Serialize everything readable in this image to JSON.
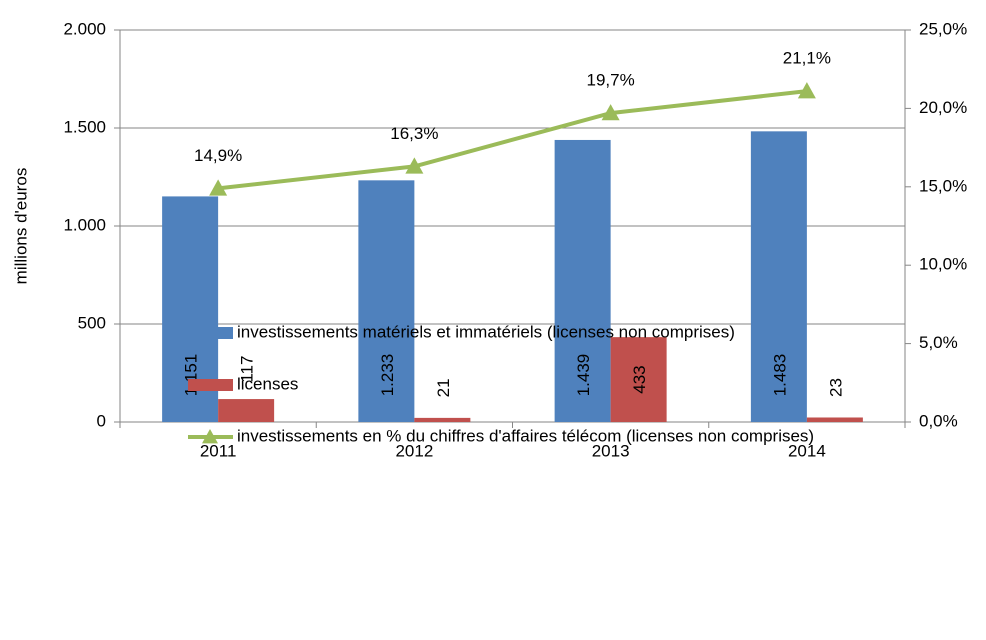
{
  "chart_data": {
    "type": "bar",
    "categories": [
      "2011",
      "2012",
      "2013",
      "2014"
    ],
    "ylabel": "millions d'euros",
    "ylim": [
      0,
      2000
    ],
    "yticks": [
      0,
      500,
      {
        "value": 1000,
        "label": "1.000"
      },
      {
        "value": 1500,
        "label": "1.500"
      },
      {
        "value": 2000,
        "label": "2.000"
      }
    ],
    "y2lim": [
      0,
      25
    ],
    "y2ticks": [
      {
        "value": 0,
        "label": "0,0%"
      },
      {
        "value": 5,
        "label": "5,0%"
      },
      {
        "value": 10,
        "label": "10,0%"
      },
      {
        "value": 15,
        "label": "15,0%"
      },
      {
        "value": 20,
        "label": "20,0%"
      },
      {
        "value": 25,
        "label": "25,0%"
      }
    ],
    "grid": true,
    "legend": "bottom",
    "series": [
      {
        "name": "investissements matériels et immatériels (licenses non comprises)",
        "type": "bar",
        "color": "#4f81bd",
        "values": [
          1151,
          1233,
          1439,
          1483
        ],
        "value_labels": [
          "1.151",
          "1.233",
          "1.439",
          "1.483"
        ]
      },
      {
        "name": "licenses",
        "type": "bar",
        "color": "#c0504d",
        "values": [
          117,
          21,
          433,
          23
        ]
      },
      {
        "name": "investissements en % du chiffres d'affaires télécom (licenses non comprises)",
        "type": "line",
        "axis": "y2",
        "color": "#9bbb59",
        "values": [
          14.9,
          16.3,
          19.7,
          21.1
        ],
        "value_labels": [
          "14,9%",
          "16,3%",
          "19,7%",
          "21,1%"
        ]
      }
    ]
  }
}
